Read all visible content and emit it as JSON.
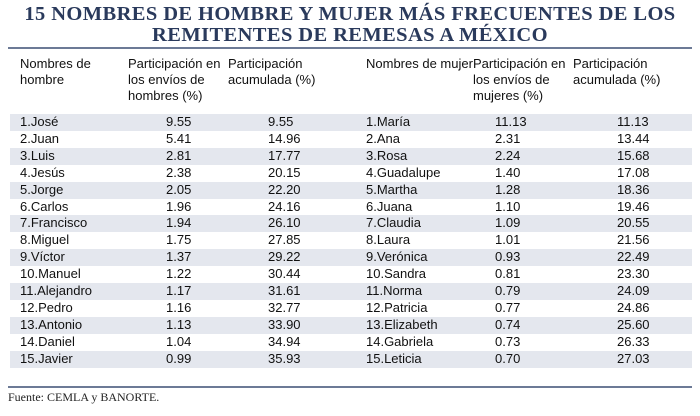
{
  "title": {
    "line1": "15 NOMBRES DE HOMBRE Y MUJER MÁS FRECUENTES DE LOS",
    "line2": "REMITENTES DE REMESAS A MÉXICO"
  },
  "table": {
    "headers": {
      "men_name": "Nombres de hombre",
      "men_share": "Participación en los envíos de hombres (%)",
      "men_cum": "Participación acumulada (%)",
      "women_name": "Nombres de mujer",
      "women_share": "Participación en los envíos de mujeres (%)",
      "women_cum": "Participación acumulada (%)"
    },
    "rows": [
      {
        "men_name": "1.José",
        "men_share": "9.55",
        "men_cum": "9.55",
        "women_name": "1.María",
        "women_share": "11.13",
        "women_cum": "11.13"
      },
      {
        "men_name": "2.Juan",
        "men_share": "5.41",
        "men_cum": "14.96",
        "women_name": "2.Ana",
        "women_share": "2.31",
        "women_cum": "13.44"
      },
      {
        "men_name": "3.Luis",
        "men_share": "2.81",
        "men_cum": "17.77",
        "women_name": "3.Rosa",
        "women_share": "2.24",
        "women_cum": "15.68"
      },
      {
        "men_name": "4.Jesús",
        "men_share": "2.38",
        "men_cum": "20.15",
        "women_name": "4.Guadalupe",
        "women_share": "1.40",
        "women_cum": "17.08"
      },
      {
        "men_name": "5.Jorge",
        "men_share": "2.05",
        "men_cum": "22.20",
        "women_name": "5.Martha",
        "women_share": "1.28",
        "women_cum": "18.36"
      },
      {
        "men_name": "6.Carlos",
        "men_share": "1.96",
        "men_cum": "24.16",
        "women_name": "6.Juana",
        "women_share": "1.10",
        "women_cum": "19.46"
      },
      {
        "men_name": "7.Francisco",
        "men_share": "1.94",
        "men_cum": "26.10",
        "women_name": "7.Claudia",
        "women_share": "1.09",
        "women_cum": "20.55"
      },
      {
        "men_name": "8.Miguel",
        "men_share": "1.75",
        "men_cum": "27.85",
        "women_name": "8.Laura",
        "women_share": "1.01",
        "women_cum": "21.56"
      },
      {
        "men_name": "9.Víctor",
        "men_share": "1.37",
        "men_cum": "29.22",
        "women_name": "9.Verónica",
        "women_share": "0.93",
        "women_cum": "22.49"
      },
      {
        "men_name": "10.Manuel",
        "men_share": "1.22",
        "men_cum": "30.44",
        "women_name": "10.Sandra",
        "women_share": "0.81",
        "women_cum": "23.30"
      },
      {
        "men_name": "11.Alejandro",
        "men_share": "1.17",
        "men_cum": "31.61",
        "women_name": "11.Norma",
        "women_share": "0.79",
        "women_cum": "24.09"
      },
      {
        "men_name": "12.Pedro",
        "men_share": "1.16",
        "men_cum": "32.77",
        "women_name": "12.Patricia",
        "women_share": "0.77",
        "women_cum": "24.86"
      },
      {
        "men_name": "13.Antonio",
        "men_share": "1.13",
        "men_cum": "33.90",
        "women_name": "13.Elizabeth",
        "women_share": "0.74",
        "women_cum": "25.60"
      },
      {
        "men_name": "14.Daniel",
        "men_share": "1.04",
        "men_cum": "34.94",
        "women_name": "14.Gabriela",
        "women_share": "0.73",
        "women_cum": "26.33"
      },
      {
        "men_name": "15.Javier",
        "men_share": "0.99",
        "men_cum": "35.93",
        "women_name": "15.Leticia",
        "women_share": "0.70",
        "women_cum": "27.03"
      }
    ]
  },
  "footer": "Fuente: CEMLA y BANORTE.",
  "colors": {
    "title": "#2a3a5c",
    "band": "#e4e7ee",
    "rule": "#6c7a96"
  }
}
